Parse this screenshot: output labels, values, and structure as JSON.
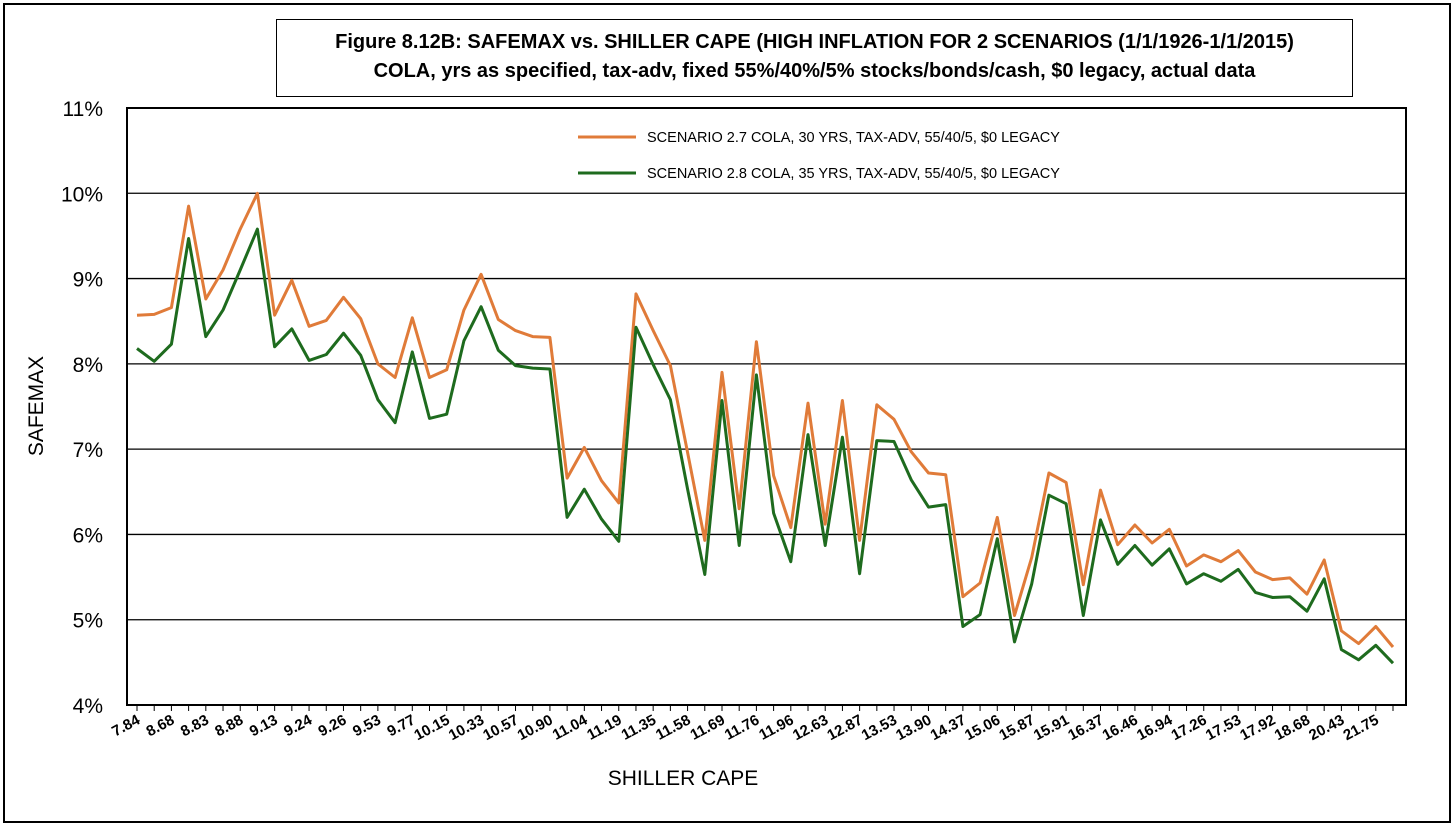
{
  "chart_data": {
    "type": "line",
    "title": "Figure 8.12B: SAFEMAX vs. SHILLER CAPE (HIGH INFLATION FOR 2 SCENARIOS (1/1/1926-1/1/2015)",
    "subtitle": "COLA, yrs as specified, tax-adv, fixed 55%/40%/5% stocks/bonds/cash, $0 legacy, actual data",
    "xlabel": "SHILLER CAPE",
    "ylabel": "SAFEMAX",
    "ylim": [
      4,
      11
    ],
    "yticks": [
      "4%",
      "5%",
      "6%",
      "7%",
      "8%",
      "9%",
      "10%",
      "11%"
    ],
    "xtick_labels": [
      "7.84",
      "8.68",
      "8.83",
      "8.88",
      "9.13",
      "9.24",
      "9.26",
      "9.53",
      "9.77",
      "10.15",
      "10.33",
      "10.57",
      "10.90",
      "11.04",
      "11.19",
      "11.35",
      "11.58",
      "11.69",
      "11.76",
      "11.96",
      "12.63",
      "12.87",
      "13.53",
      "13.90",
      "14.37",
      "15.06",
      "15.87",
      "15.91",
      "16.37",
      "16.46",
      "16.94",
      "17.26",
      "17.53",
      "17.92",
      "18.68",
      "20.43",
      "21.75"
    ],
    "grid": true,
    "legend_position": "top-center",
    "series": [
      {
        "name": "SCENARIO 2.7 COLA, 30 YRS, TAX-ADV, 55/40/5, $0 LEGACY",
        "color": "#E07B39",
        "values": [
          8.57,
          8.58,
          8.66,
          9.85,
          8.76,
          9.1,
          9.58,
          10.0,
          8.57,
          8.98,
          8.44,
          8.51,
          8.78,
          8.53,
          8.0,
          7.84,
          8.54,
          7.84,
          7.93,
          8.63,
          9.05,
          8.52,
          8.39,
          8.32,
          8.31,
          6.66,
          7.02,
          6.63,
          6.37,
          8.82,
          8.39,
          7.98,
          6.96,
          5.93,
          7.9,
          6.3,
          8.26,
          6.69,
          6.08,
          7.54,
          6.12,
          7.57,
          5.93,
          7.52,
          7.35,
          6.97,
          6.72,
          6.7,
          5.27,
          5.43,
          6.2,
          5.05,
          5.73,
          6.72,
          6.61,
          5.41,
          6.52,
          5.88,
          6.11,
          5.9,
          6.06,
          5.63,
          5.76,
          5.68,
          5.81,
          5.56,
          5.47,
          5.49,
          5.3,
          5.7,
          4.87,
          4.72,
          4.92,
          4.68
        ]
      },
      {
        "name": "SCENARIO 2.8 COLA, 35 YRS, TAX-ADV, 55/40/5, $0 LEGACY",
        "color": "#1E6B1E",
        "values": [
          8.18,
          8.03,
          8.23,
          9.47,
          8.32,
          8.63,
          9.1,
          9.58,
          8.2,
          8.41,
          8.04,
          8.11,
          8.36,
          8.1,
          7.58,
          7.31,
          8.14,
          7.36,
          7.41,
          8.27,
          8.67,
          8.16,
          7.98,
          7.95,
          7.94,
          6.2,
          6.53,
          6.18,
          5.92,
          8.43,
          7.99,
          7.58,
          6.53,
          5.53,
          7.57,
          5.87,
          7.87,
          6.25,
          5.68,
          7.17,
          5.87,
          7.14,
          5.54,
          7.1,
          7.09,
          6.64,
          6.32,
          6.35,
          4.92,
          5.06,
          5.95,
          4.74,
          5.42,
          6.46,
          6.36,
          5.05,
          6.17,
          5.65,
          5.87,
          5.64,
          5.83,
          5.42,
          5.54,
          5.45,
          5.59,
          5.32,
          5.26,
          5.27,
          5.1,
          5.48,
          4.65,
          4.53,
          4.7,
          4.49
        ]
      }
    ]
  }
}
